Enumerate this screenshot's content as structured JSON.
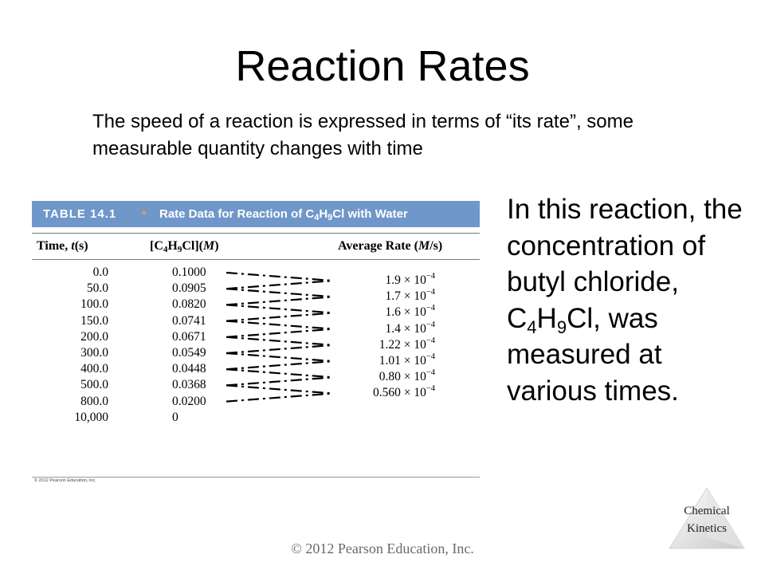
{
  "slide": {
    "title": "Reaction Rates",
    "intro": "The speed of a reaction is expressed in terms of “its rate”, some measurable quantity changes with time",
    "side_text": {
      "line1": "In this reaction, the concentration of butyl chloride, C",
      "sub1": "4",
      "mid1": "H",
      "sub2": "9",
      "line2": "Cl, was measured at various times."
    },
    "footer": "© 2012 Pearson Education, Inc.",
    "corner_label_line1": "Chemical",
    "corner_label_line2": "Kinetics"
  },
  "table": {
    "label": "TABLE 14.1",
    "bullet": "•",
    "caption_pre": "Rate Data for Reaction of C",
    "caption_sub1": "4",
    "caption_mid": "H",
    "caption_sub2": "9",
    "caption_post": "Cl with Water",
    "col_time_pre": "Time, ",
    "col_time_var": "t",
    "col_time_post": "(s)",
    "col_conc_pre": "[C",
    "col_conc_sub1": "4",
    "col_conc_mid": "H",
    "col_conc_sub2": "9",
    "col_conc_post": "Cl](",
    "col_conc_unit": "M",
    "col_conc_close": ")",
    "col_rate_pre": "Average Rate (",
    "col_rate_unit": "M",
    "col_rate_post": "/s)",
    "times": [
      "0.0",
      "50.0",
      "100.0",
      "150.0",
      "200.0",
      "300.0",
      "400.0",
      "500.0",
      "800.0",
      "10,000"
    ],
    "concentrations": [
      "0.1000",
      "0.0905",
      "0.0820",
      "0.0741",
      "0.0671",
      "0.0549",
      "0.0448",
      "0.0368",
      "0.0200",
      "0"
    ],
    "rates": [
      {
        "mantissa": "1.9 × 10",
        "exponent": "−4"
      },
      {
        "mantissa": "1.7 × 10",
        "exponent": "−4"
      },
      {
        "mantissa": "1.6 × 10",
        "exponent": "−4"
      },
      {
        "mantissa": "1.4 × 10",
        "exponent": "−4"
      },
      {
        "mantissa": "1.22 × 10",
        "exponent": "−4"
      },
      {
        "mantissa": "1.01 × 10",
        "exponent": "−4"
      },
      {
        "mantissa": "0.80 × 10",
        "exponent": "−4"
      },
      {
        "mantissa": "0.560 × 10",
        "exponent": "−4"
      }
    ],
    "copyright": "© 2012 Pearson Education, Inc."
  }
}
